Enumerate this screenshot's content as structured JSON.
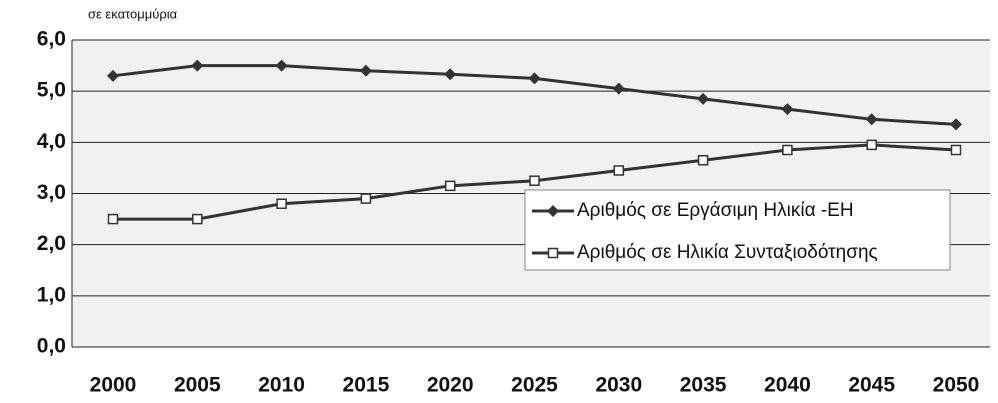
{
  "chart_data": {
    "type": "line",
    "subtitle": "σε εκατομμύρια",
    "categories": [
      "2000",
      "2005",
      "2010",
      "2015",
      "2020",
      "2025",
      "2030",
      "2035",
      "2040",
      "2045",
      "2050"
    ],
    "series": [
      {
        "name": "Αριθμός σε Εργάσιμη Ηλικία -ΕΗ",
        "color": "#333333",
        "marker": "diamond",
        "values": [
          5.3,
          5.5,
          5.5,
          5.4,
          5.33,
          5.25,
          5.05,
          4.85,
          4.65,
          4.45,
          4.35
        ]
      },
      {
        "name": "Αριθμός σε Ηλικία Συνταξιοδότησης",
        "color": "#333333",
        "marker": "square",
        "values": [
          2.5,
          2.5,
          2.8,
          2.9,
          3.15,
          3.25,
          3.45,
          3.65,
          3.85,
          3.95,
          3.85
        ]
      }
    ],
    "ylim": [
      0,
      6
    ],
    "yticks": [
      {
        "value": 0,
        "label": "0,0"
      },
      {
        "value": 1,
        "label": "1,0"
      },
      {
        "value": 2,
        "label": "2,0"
      },
      {
        "value": 3,
        "label": "3,0"
      },
      {
        "value": 4,
        "label": "4,0"
      },
      {
        "value": 5,
        "label": "5,0"
      },
      {
        "value": 6,
        "label": "6,0"
      }
    ],
    "grid": true
  }
}
